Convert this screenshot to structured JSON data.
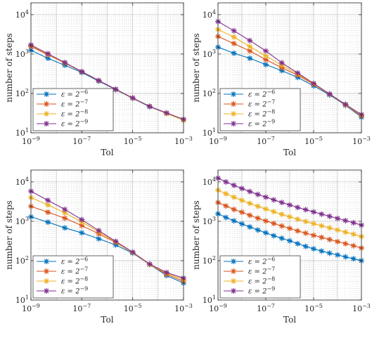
{
  "chart_data": [
    {
      "type": "line",
      "xlabel": "Tol",
      "ylabel": "number of steps",
      "xscale": "log",
      "yscale": "log",
      "xlim": [
        1e-09,
        0.001
      ],
      "ylim": [
        10,
        20000
      ],
      "x_ticks": [
        "10^-9",
        "10^-7",
        "10^-5",
        "10^-3"
      ],
      "y_ticks": [
        "10^1",
        "10^2",
        "10^3",
        "10^4"
      ],
      "grid": true,
      "legend_position": "bottom-left",
      "x": [
        1e-09,
        2.15e-09,
        4.64e-09,
        1e-08,
        2.15e-08,
        4.64e-08,
        1e-07,
        2.15e-07,
        4.64e-07,
        1e-06,
        2.15e-06,
        4.64e-06,
        1e-05,
        2.15e-05,
        4.64e-05,
        0.0001,
        0.000215,
        0.000464,
        0.001
      ],
      "series": [
        {
          "name": "ε = 2^−6",
          "color": "#0072BD",
          "values": [
            1250,
            null,
            780,
            null,
            520,
            null,
            340,
            null,
            205,
            null,
            125,
            null,
            75,
            null,
            46,
            null,
            31,
            null,
            21
          ]
        },
        {
          "name": "ε = 2^−7",
          "color": "#D95319",
          "values": [
            1550,
            null,
            960,
            null,
            590,
            null,
            355,
            null,
            210,
            null,
            127,
            null,
            76,
            null,
            47,
            null,
            31,
            null,
            21
          ]
        },
        {
          "name": "ε = 2^−8",
          "color": "#EDB120",
          "values": [
            1650,
            null,
            1000,
            null,
            600,
            null,
            358,
            null,
            212,
            null,
            128,
            null,
            76,
            null,
            47,
            null,
            31,
            null,
            21
          ]
        },
        {
          "name": "ε = 2^−9",
          "color": "#7E2F8E",
          "values": [
            1700,
            null,
            1020,
            null,
            610,
            null,
            360,
            null,
            213,
            null,
            128,
            null,
            77,
            null,
            47,
            null,
            32,
            null,
            22
          ]
        }
      ]
    },
    {
      "type": "line",
      "xlabel": "Tol",
      "ylabel": "number of steps",
      "xscale": "log",
      "yscale": "log",
      "xlim": [
        1e-09,
        0.001
      ],
      "ylim": [
        10,
        20000
      ],
      "x_ticks": [
        "10^-9",
        "10^-7",
        "10^-5",
        "10^-3"
      ],
      "y_ticks": [
        "10^1",
        "10^2",
        "10^3",
        "10^4"
      ],
      "grid": true,
      "legend_position": "bottom-left",
      "x": [
        1e-09,
        2.15e-09,
        4.64e-09,
        1e-08,
        2.15e-08,
        4.64e-08,
        1e-07,
        2.15e-07,
        4.64e-07,
        1e-06,
        2.15e-06,
        4.64e-06,
        1e-05,
        2.15e-05,
        4.64e-05,
        0.0001,
        0.000215,
        0.000464,
        0.001
      ],
      "series": [
        {
          "name": "ε = 2^−6",
          "color": "#0072BD",
          "values": [
            1500,
            null,
            1050,
            null,
            780,
            null,
            540,
            null,
            380,
            null,
            255,
            null,
            155,
            null,
            92,
            null,
            50,
            null,
            25
          ]
        },
        {
          "name": "ε = 2^−7",
          "color": "#D95319",
          "values": [
            2800,
            null,
            1850,
            null,
            1200,
            null,
            720,
            null,
            450,
            null,
            290,
            null,
            170,
            null,
            95,
            null,
            51,
            null,
            27
          ]
        },
        {
          "name": "ε = 2^−8",
          "color": "#EDB120",
          "values": [
            4200,
            null,
            2700,
            null,
            1550,
            null,
            900,
            null,
            520,
            null,
            310,
            null,
            175,
            null,
            96,
            null,
            52,
            null,
            28
          ]
        },
        {
          "name": "ε = 2^−9",
          "color": "#7E2F8E",
          "values": [
            6700,
            null,
            3900,
            null,
            2200,
            null,
            1200,
            null,
            600,
            null,
            330,
            null,
            180,
            null,
            97,
            null,
            53,
            null,
            29
          ]
        }
      ]
    },
    {
      "type": "line",
      "xlabel": "Tol",
      "ylabel": "number of steps",
      "xscale": "log",
      "yscale": "log",
      "xlim": [
        1e-09,
        0.001
      ],
      "ylim": [
        10,
        20000
      ],
      "x_ticks": [
        "10^-9",
        "10^-7",
        "10^-5",
        "10^-3"
      ],
      "y_ticks": [
        "10^1",
        "10^2",
        "10^3",
        "10^4"
      ],
      "grid": true,
      "legend_position": "bottom-left",
      "x": [
        1e-09,
        2.15e-09,
        4.64e-09,
        1e-08,
        2.15e-08,
        4.64e-08,
        1e-07,
        2.15e-07,
        4.64e-07,
        1e-06,
        2.15e-06,
        4.64e-06,
        1e-05,
        2.15e-05,
        4.64e-05,
        0.0001,
        0.000215,
        0.000464,
        0.001
      ],
      "series": [
        {
          "name": "ε = 2^−6",
          "color": "#0072BD",
          "values": [
            1300,
            null,
            950,
            null,
            680,
            null,
            510,
            null,
            360,
            null,
            250,
            null,
            155,
            null,
            80,
            null,
            42,
            null,
            27
          ]
        },
        {
          "name": "ε = 2^−7",
          "color": "#D95319",
          "values": [
            2400,
            null,
            1700,
            null,
            1200,
            null,
            780,
            null,
            480,
            null,
            290,
            null,
            160,
            null,
            80,
            null,
            45,
            null,
            30
          ]
        },
        {
          "name": "ε = 2^−8",
          "color": "#EDB120",
          "values": [
            4000,
            null,
            2600,
            null,
            1650,
            null,
            960,
            null,
            540,
            null,
            300,
            null,
            160,
            null,
            80,
            null,
            48,
            null,
            33
          ]
        },
        {
          "name": "ε = 2^−9",
          "color": "#7E2F8E",
          "values": [
            5800,
            null,
            3400,
            null,
            2000,
            null,
            1100,
            null,
            580,
            null,
            310,
            null,
            165,
            null,
            82,
            null,
            50,
            null,
            36
          ]
        }
      ]
    },
    {
      "type": "line",
      "xlabel": "Tol",
      "ylabel": "number of steps",
      "xscale": "log",
      "yscale": "log",
      "xlim": [
        1e-09,
        0.001
      ],
      "ylim": [
        10,
        20000
      ],
      "x_ticks": [
        "10^-9",
        "10^-7",
        "10^-5",
        "10^-3"
      ],
      "y_ticks": [
        "10^1",
        "10^2",
        "10^3",
        "10^4"
      ],
      "grid": true,
      "legend_position": "bottom-left",
      "x": [
        1e-09,
        2.15e-09,
        4.64e-09,
        1e-08,
        2.15e-08,
        4.64e-08,
        1e-07,
        2.15e-07,
        4.64e-07,
        1e-06,
        2.15e-06,
        4.64e-06,
        1e-05,
        2.15e-05,
        4.64e-05,
        0.0001,
        0.000215,
        0.000464,
        0.001
      ],
      "series": [
        {
          "name": "ε = 2^−6",
          "color": "#0072BD",
          "values": [
            1550,
            1250,
            1030,
            860,
            720,
            600,
            510,
            430,
            370,
            320,
            270,
            230,
            200,
            175,
            155,
            140,
            125,
            112,
            100
          ]
        },
        {
          "name": "ε = 2^−7",
          "color": "#D95319",
          "values": [
            3000,
            2450,
            2000,
            1700,
            1420,
            1200,
            1020,
            880,
            760,
            660,
            570,
            500,
            440,
            390,
            345,
            305,
            270,
            240,
            210
          ]
        },
        {
          "name": "ε = 2^−8",
          "color": "#EDB120",
          "values": [
            6200,
            5000,
            4100,
            3400,
            2850,
            2400,
            2050,
            1750,
            1500,
            1300,
            1130,
            990,
            870,
            770,
            680,
            600,
            530,
            470,
            410
          ]
        },
        {
          "name": "ε = 2^−9",
          "color": "#7E2F8E",
          "values": [
            12500,
            10000,
            8200,
            6800,
            5700,
            4800,
            4100,
            3500,
            3000,
            2600,
            2250,
            1970,
            1730,
            1520,
            1340,
            1180,
            1040,
            920,
            800
          ]
        }
      ]
    }
  ]
}
